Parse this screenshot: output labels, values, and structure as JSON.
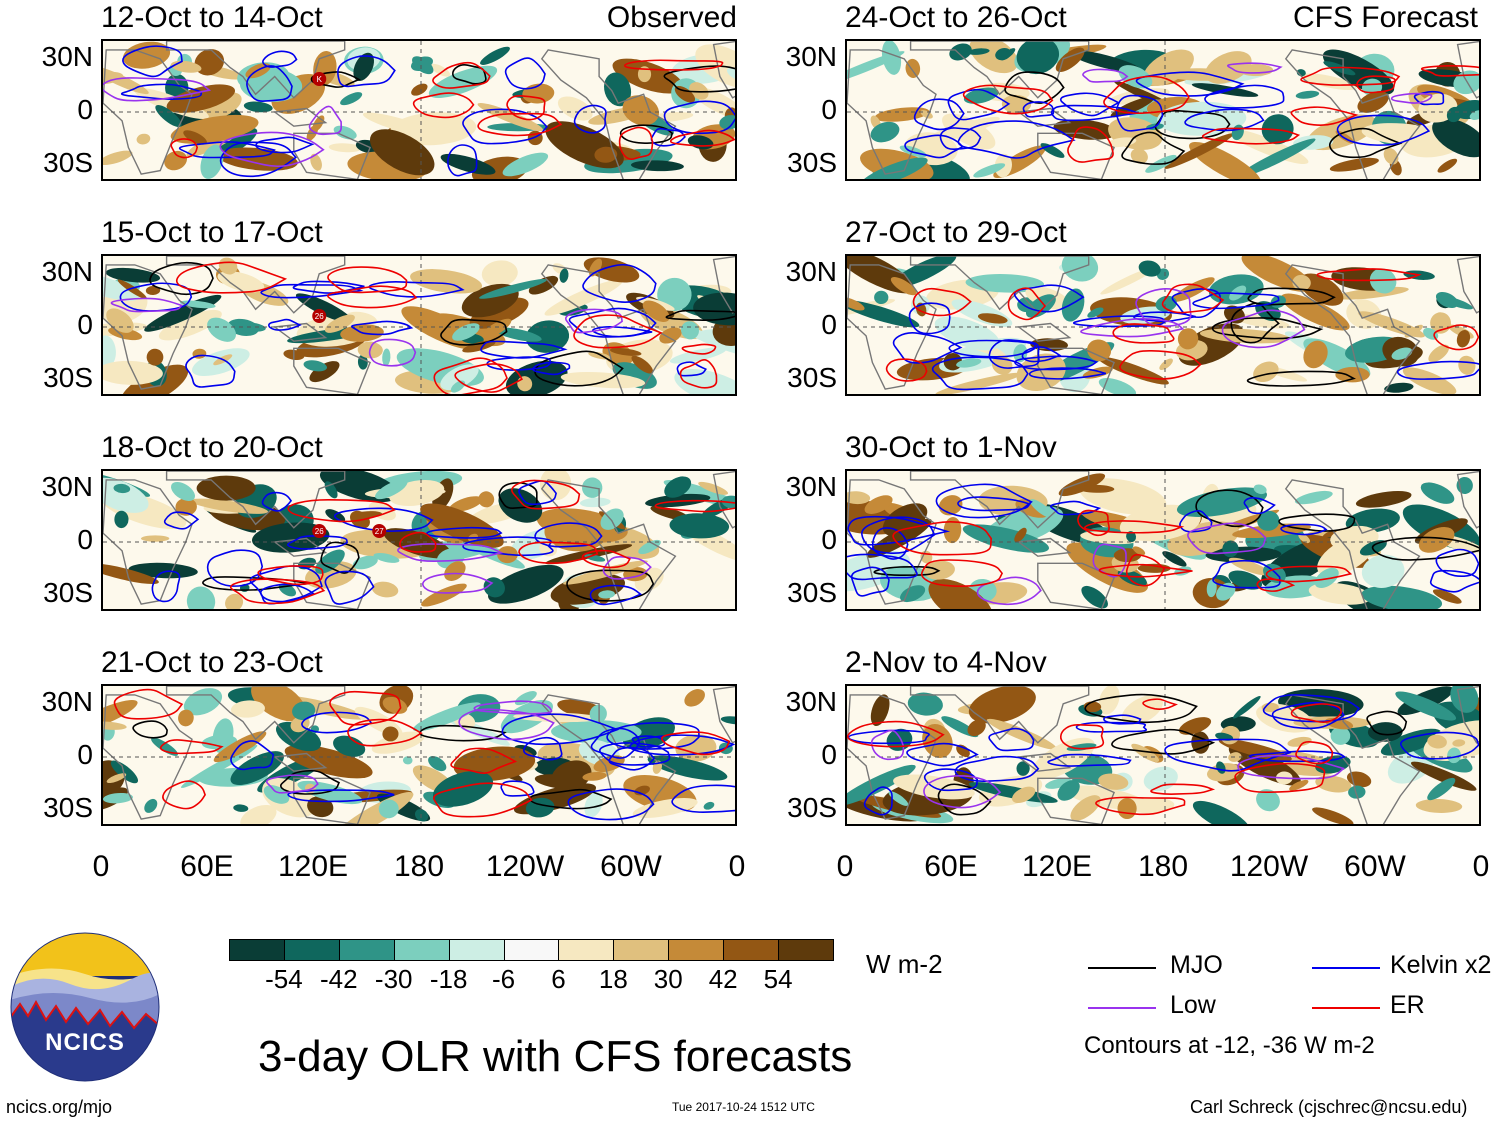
{
  "panels": [
    {
      "id": "p1",
      "title": "12-Oct to 14-Oct",
      "label": "Observed"
    },
    {
      "id": "p2",
      "title": "24-Oct to 26-Oct",
      "label": "CFS Forecast"
    },
    {
      "id": "p3",
      "title": "15-Oct to 17-Oct",
      "label": ""
    },
    {
      "id": "p4",
      "title": "27-Oct to 29-Oct",
      "label": ""
    },
    {
      "id": "p5",
      "title": "18-Oct to 20-Oct",
      "label": ""
    },
    {
      "id": "p6",
      "title": "30-Oct to 1-Nov",
      "label": ""
    },
    {
      "id": "p7",
      "title": "21-Oct to 23-Oct",
      "label": ""
    },
    {
      "id": "p8",
      "title": "2-Nov to 4-Nov",
      "label": ""
    }
  ],
  "lat_labels": [
    "30N",
    "0",
    "30S"
  ],
  "lon_labels": [
    "0",
    "60E",
    "120E",
    "180",
    "120W",
    "60W",
    "0"
  ],
  "colorbar": {
    "colors": [
      "#0a3d36",
      "#0f675d",
      "#2f9487",
      "#7ccfbe",
      "#cdeee4",
      "#f8f8f8",
      "#f6e8c1",
      "#e0c07e",
      "#c58a38",
      "#935714",
      "#5e3a0c"
    ],
    "ticks": [
      "-54",
      "-42",
      "-30",
      "-18",
      "-6",
      "6",
      "18",
      "30",
      "42",
      "54"
    ],
    "unit": "W m-2"
  },
  "legend": {
    "items": [
      {
        "label": "MJO",
        "color": "#000000"
      },
      {
        "label": "Kelvin x2",
        "color": "#0000ee"
      },
      {
        "label": "Low",
        "color": "#9933ee"
      },
      {
        "label": "ER",
        "color": "#ee0000"
      }
    ],
    "note": "Contours at -12, -36 W m-2"
  },
  "logo_text": "NCICS",
  "main_title": "3-day OLR with CFS forecasts",
  "footer": {
    "left": "ncics.org/mjo",
    "center": "Tue 2017-10-24 1512 UTC",
    "right": "Carl Schreck (cjschrec@ncsu.edu)"
  },
  "storm_markers": {
    "p1": [
      "K"
    ],
    "p3": [
      "26"
    ],
    "p5": [
      "26",
      "27"
    ]
  }
}
